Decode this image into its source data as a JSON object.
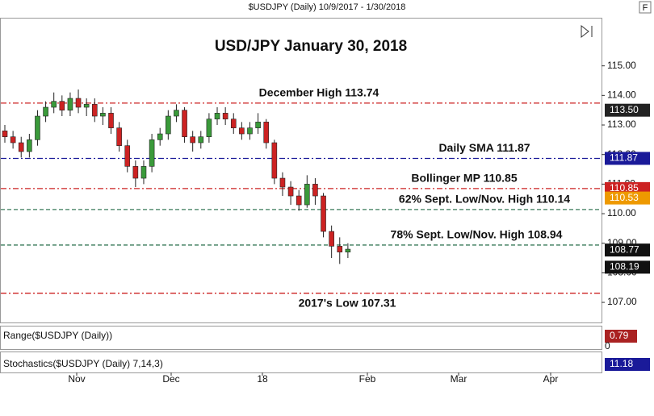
{
  "chart_data": {
    "type": "candlestick",
    "header": "$USDJPY (Daily)  10/9/2017 - 1/30/2018",
    "title": "USD/JPY January 30, 2018",
    "button": "F",
    "up_color": "#3a9a3a",
    "down_color": "#cc2222",
    "ohlc": [
      [
        112.8,
        113.0,
        112.4,
        112.6
      ],
      [
        112.6,
        112.8,
        112.2,
        112.4
      ],
      [
        112.4,
        112.6,
        111.9,
        112.1
      ],
      [
        112.1,
        112.7,
        111.9,
        112.5
      ],
      [
        112.5,
        113.5,
        112.3,
        113.3
      ],
      [
        113.3,
        113.8,
        113.1,
        113.6
      ],
      [
        113.6,
        114.1,
        113.4,
        113.8
      ],
      [
        113.8,
        114.0,
        113.3,
        113.5
      ],
      [
        113.5,
        114.1,
        113.3,
        113.9
      ],
      [
        113.9,
        114.2,
        113.4,
        113.6
      ],
      [
        113.6,
        113.9,
        113.3,
        113.7
      ],
      [
        113.7,
        113.9,
        113.1,
        113.3
      ],
      [
        113.3,
        113.6,
        113.0,
        113.4
      ],
      [
        113.4,
        113.6,
        112.7,
        112.9
      ],
      [
        112.9,
        113.1,
        112.1,
        112.3
      ],
      [
        112.3,
        112.5,
        111.4,
        111.6
      ],
      [
        111.6,
        111.8,
        110.9,
        111.2
      ],
      [
        111.2,
        111.8,
        111.0,
        111.6
      ],
      [
        111.6,
        112.7,
        111.4,
        112.5
      ],
      [
        112.5,
        112.9,
        112.3,
        112.7
      ],
      [
        112.7,
        113.5,
        112.5,
        113.3
      ],
      [
        113.3,
        113.7,
        113.1,
        113.5
      ],
      [
        113.5,
        113.6,
        112.4,
        112.6
      ],
      [
        112.6,
        112.8,
        112.1,
        112.4
      ],
      [
        112.4,
        112.8,
        112.2,
        112.6
      ],
      [
        112.6,
        113.4,
        112.4,
        113.2
      ],
      [
        113.2,
        113.6,
        113.0,
        113.4
      ],
      [
        113.4,
        113.6,
        113.0,
        113.2
      ],
      [
        113.2,
        113.4,
        112.7,
        112.9
      ],
      [
        112.9,
        113.1,
        112.5,
        112.7
      ],
      [
        112.7,
        113.1,
        112.5,
        112.9
      ],
      [
        112.9,
        113.4,
        112.7,
        113.1
      ],
      [
        113.1,
        113.2,
        112.2,
        112.4
      ],
      [
        112.4,
        112.5,
        111.0,
        111.2
      ],
      [
        111.2,
        111.4,
        110.6,
        110.9
      ],
      [
        110.9,
        111.1,
        110.3,
        110.6
      ],
      [
        110.6,
        110.8,
        110.1,
        110.3
      ],
      [
        110.3,
        111.3,
        110.2,
        111.0
      ],
      [
        111.0,
        111.2,
        110.3,
        110.6
      ],
      [
        110.6,
        110.7,
        109.2,
        109.4
      ],
      [
        109.4,
        109.6,
        108.5,
        108.9
      ],
      [
        108.9,
        109.2,
        108.3,
        108.7
      ],
      [
        108.7,
        109.0,
        108.5,
        108.8
      ]
    ],
    "ylim": [
      106.32,
      116.6
    ],
    "yticks": [
      {
        "value": 107,
        "label": "107.00"
      },
      {
        "value": 108,
        "label": "108.00"
      },
      {
        "value": 109,
        "label": "109.00"
      },
      {
        "value": 110,
        "label": "110.00"
      },
      {
        "value": 111,
        "label": "111.00"
      },
      {
        "value": 112,
        "label": "112.00"
      },
      {
        "value": 113,
        "label": "113.00"
      },
      {
        "value": 114,
        "label": "114.00"
      },
      {
        "value": 115,
        "label": "115.00"
      }
    ],
    "xlabels": [
      "Nov",
      "Dec",
      "18",
      "Feb",
      "Mar",
      "Apr"
    ],
    "levels": [
      {
        "label": "December High 113.74",
        "value": 113.74,
        "color": "#cc2222"
      },
      {
        "label": "Daily SMA 111.87",
        "value": 111.87,
        "color": "#1a1a99"
      },
      {
        "label": "Bollinger MP 110.85",
        "value": 110.85,
        "color": "#cc2222"
      },
      {
        "label": "62% Sept. Low/Nov. High 110.14",
        "value": 110.14,
        "color": "#3a7a5a"
      },
      {
        "label": "78% Sept. Low/Nov. High 108.94",
        "value": 108.94,
        "color": "#3a7a5a"
      },
      {
        "label": "2017's Low 107.31",
        "value": 107.31,
        "color": "#cc2222"
      }
    ],
    "price_tags": [
      {
        "value": 113.5,
        "label": "113.50",
        "color": "#222222"
      },
      {
        "value": 111.87,
        "label": "111.87",
        "color": "#1a1a99"
      },
      {
        "value": 110.85,
        "label": "110.85",
        "color": "#cc2222"
      },
      {
        "value": 110.53,
        "label": "110.53",
        "color": "#ee9900"
      },
      {
        "value": 108.77,
        "label": "108.77",
        "color": "#111111"
      },
      {
        "value": 108.19,
        "label": "108.19",
        "color": "#111111"
      }
    ],
    "range_panel": {
      "label": "Range($USDJPY (Daily))",
      "tag": "0.79",
      "tick": "0",
      "color": "#aa2222"
    },
    "stoch_panel": {
      "label": "Stochastics($USDJPY (Daily) 7,14,3)",
      "tag": "11.18",
      "color": "#1a1a99"
    }
  }
}
